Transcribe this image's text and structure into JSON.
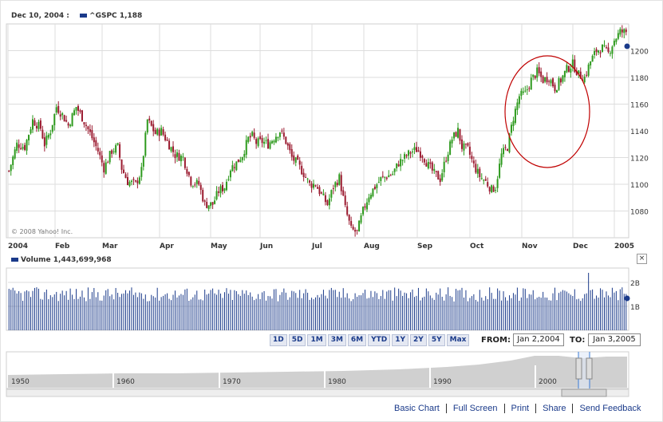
{
  "header": {
    "date_label": "Dec 10, 2004 :",
    "ticker": "^GSPC",
    "last_value": "1,188"
  },
  "volume": {
    "title": "Volume",
    "value": "1,443,699,968"
  },
  "copyright": "© 2008 Yahoo! Inc.",
  "range_buttons": [
    "1D",
    "5D",
    "1M",
    "3M",
    "6M",
    "YTD",
    "1Y",
    "2Y",
    "5Y",
    "Max"
  ],
  "from_label": "FROM:",
  "from_value": "Jan 2,2004",
  "to_label": "TO:",
  "to_value": "Jan 3,2005",
  "close_icon": "×",
  "footer": {
    "links": [
      "Basic Chart",
      "Full Screen",
      "Print",
      "Share",
      "Send Feedback"
    ]
  },
  "colors": {
    "up": "#2e9a1e",
    "down": "#9b1b30",
    "volume": "#1a3a8a",
    "annotation": "#c00000",
    "grid": "#dddddd",
    "navigator_fill": "#d0d0d0"
  },
  "chart_data": [
    {
      "type": "candlestick",
      "title": "^GSPC",
      "x_labels": [
        "2004",
        "Feb",
        "Mar",
        "Apr",
        "May",
        "Jun",
        "Jul",
        "Aug",
        "Sep",
        "Oct",
        "Nov",
        "Dec",
        "2005"
      ],
      "y_ticks": [
        1080,
        1100,
        1120,
        1140,
        1160,
        1180,
        1200
      ],
      "ylim": [
        1060,
        1220
      ],
      "grid": true,
      "annotation": "circle around November rally",
      "close_path": [
        [
          0,
          1110
        ],
        [
          4,
          1130
        ],
        [
          8,
          1128
        ],
        [
          12,
          1148
        ],
        [
          16,
          1142
        ],
        [
          18,
          1130
        ],
        [
          21,
          1140
        ],
        [
          24,
          1158
        ],
        [
          27,
          1152
        ],
        [
          30,
          1144
        ],
        [
          34,
          1158
        ],
        [
          37,
          1150
        ],
        [
          41,
          1138
        ],
        [
          45,
          1125
        ],
        [
          48,
          1112
        ],
        [
          52,
          1125
        ],
        [
          55,
          1128
        ],
        [
          57,
          1112
        ],
        [
          60,
          1102
        ],
        [
          64,
          1100
        ],
        [
          67,
          1110
        ],
        [
          70,
          1148
        ],
        [
          74,
          1138
        ],
        [
          77,
          1140
        ],
        [
          80,
          1132
        ],
        [
          84,
          1122
        ],
        [
          88,
          1120
        ],
        [
          92,
          1102
        ],
        [
          96,
          1100
        ],
        [
          99,
          1085
        ],
        [
          103,
          1085
        ],
        [
          106,
          1095
        ],
        [
          109,
          1098
        ],
        [
          112,
          1112
        ],
        [
          115,
          1116
        ],
        [
          118,
          1122
        ],
        [
          121,
          1134
        ],
        [
          123,
          1136
        ],
        [
          125,
          1131
        ],
        [
          128,
          1132
        ],
        [
          131,
          1130
        ],
        [
          134,
          1135
        ],
        [
          137,
          1140
        ],
        [
          140,
          1132
        ],
        [
          143,
          1120
        ],
        [
          146,
          1115
        ],
        [
          149,
          1108
        ],
        [
          152,
          1100
        ],
        [
          155,
          1100
        ],
        [
          158,
          1092
        ],
        [
          161,
          1085
        ],
        [
          164,
          1098
        ],
        [
          167,
          1105
        ],
        [
          170,
          1082
        ],
        [
          173,
          1066
        ],
        [
          176,
          1064
        ],
        [
          179,
          1080
        ],
        [
          182,
          1092
        ],
        [
          185,
          1098
        ],
        [
          188,
          1104
        ],
        [
          191,
          1106
        ],
        [
          194,
          1108
        ],
        [
          197,
          1116
        ],
        [
          200,
          1120
        ],
        [
          203,
          1124
        ],
        [
          206,
          1126
        ],
        [
          209,
          1122
        ],
        [
          212,
          1114
        ],
        [
          215,
          1108
        ],
        [
          218,
          1104
        ],
        [
          221,
          1120
        ],
        [
          224,
          1134
        ],
        [
          227,
          1140
        ],
        [
          229,
          1128
        ],
        [
          232,
          1126
        ],
        [
          235,
          1114
        ],
        [
          238,
          1106
        ],
        [
          241,
          1102
        ],
        [
          244,
          1096
        ],
        [
          246,
          1098
        ],
        [
          249,
          1122
        ],
        [
          252,
          1128
        ],
        [
          255,
          1150
        ],
        [
          258,
          1166
        ],
        [
          261,
          1168
        ],
        [
          264,
          1178
        ],
        [
          267,
          1184
        ],
        [
          270,
          1178
        ],
        [
          273,
          1180
        ],
        [
          276,
          1172
        ],
        [
          279,
          1178
        ],
        [
          282,
          1186
        ],
        [
          285,
          1190
        ],
        [
          288,
          1182
        ],
        [
          291,
          1180
        ],
        [
          294,
          1192
        ],
        [
          297,
          1200
        ],
        [
          300,
          1202
        ],
        [
          303,
          1198
        ],
        [
          306,
          1208
        ],
        [
          309,
          1214
        ],
        [
          312,
          1214
        ]
      ]
    },
    {
      "type": "bar",
      "title": "Volume",
      "y_ticks": [
        "1B",
        "2B"
      ],
      "ylim": [
        0,
        2.6
      ],
      "description": "daily trading volume bars, mostly 1.0–1.9B with a spike near 2.4B in mid-December"
    },
    {
      "type": "area",
      "title": "navigator",
      "x_labels": [
        "1950",
        "1960",
        "1970",
        "1980",
        "1990",
        "2000"
      ]
    }
  ]
}
